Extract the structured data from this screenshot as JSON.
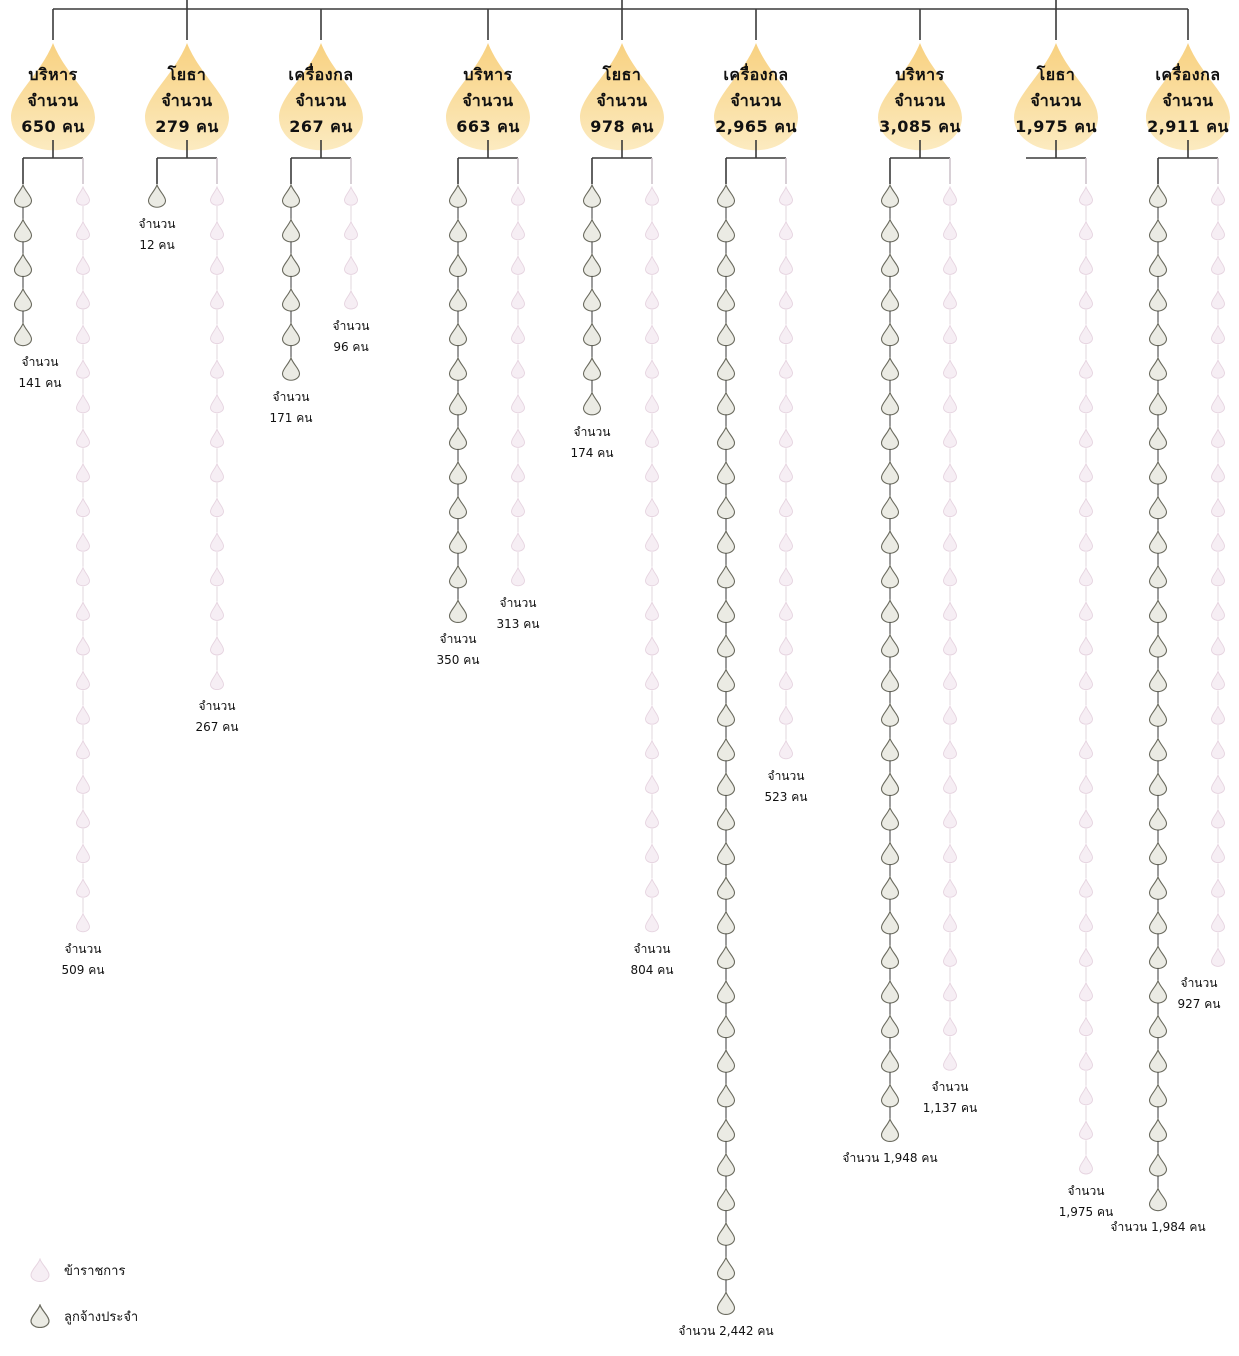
{
  "colors": {
    "line": "#3a3a3a",
    "header_drop_top": "#f7c96a",
    "header_drop_bottom": "#fbe7b5",
    "employee_drop_fill": "#ebebe4",
    "employee_drop_stroke": "#6b6b5f",
    "official_drop_fill": "#f6eef4",
    "official_drop_stroke": "#e6d4e0"
  },
  "legend": {
    "official": {
      "icon": "official-drop-icon",
      "label": "ข้าราชการ"
    },
    "employee": {
      "icon": "employee-drop-icon",
      "label": "ลูกจ้างประจำ"
    }
  },
  "categories": [
    {
      "name": "บริหาร",
      "count_label": "จำนวน",
      "count": "650 คน",
      "employees": {
        "drops": 5,
        "label": "จำนวน",
        "value": "141 คน"
      },
      "officials": {
        "drops": 22,
        "label": "จำนวน",
        "value": "509 คน"
      }
    },
    {
      "name": "โยธา",
      "count_label": "จำนวน",
      "count": "279 คน",
      "employees": {
        "drops": 1,
        "label": "จำนวน",
        "value": "12 คน"
      },
      "officials": {
        "drops": 15,
        "label": "จำนวน",
        "value": "267 คน"
      }
    },
    {
      "name": "เครื่องกล",
      "count_label": "จำนวน",
      "count": "267 คน",
      "employees": {
        "drops": 6,
        "label": "จำนวน",
        "value": "171 คน"
      },
      "officials": {
        "drops": 4,
        "label": "จำนวน",
        "value": "96 คน"
      }
    },
    {
      "name": "บริหาร",
      "count_label": "จำนวน",
      "count": "663 คน",
      "employees": {
        "drops": 13,
        "label": "จำนวน",
        "value": "350 คน"
      },
      "officials": {
        "drops": 12,
        "label": "จำนวน",
        "value": "313 คน"
      }
    },
    {
      "name": "โยธา",
      "count_label": "จำนวน",
      "count": "978 คน",
      "employees": {
        "drops": 7,
        "label": "จำนวน",
        "value": "174 คน"
      },
      "officials": {
        "drops": 22,
        "label": "จำนวน",
        "value": "804 คน"
      }
    },
    {
      "name": "เครื่องกล",
      "count_label": "จำนวน",
      "count": "2,965 คน",
      "employees": {
        "drops": 33,
        "label": "จำนวน",
        "value": "2,442 คน"
      },
      "officials": {
        "drops": 17,
        "label": "จำนวน",
        "value": "523 คน"
      }
    },
    {
      "name": "บริหาร",
      "count_label": "จำนวน",
      "count": "3,085 คน",
      "employees": {
        "drops": 28,
        "label": "จำนวน",
        "value": "1,948 คน"
      },
      "officials": {
        "drops": 26,
        "label": "จำนวน",
        "value": "1,137 คน"
      }
    },
    {
      "name": "โยธา",
      "count_label": "จำนวน",
      "count": "1,975 คน",
      "employees": {
        "drops": 0,
        "label": "",
        "value": ""
      },
      "officials": {
        "drops": 29,
        "label": "จำนวน",
        "value": "1,975 คน"
      }
    },
    {
      "name": "เครื่องกล",
      "count_label": "จำนวน",
      "count": "2,911 คน",
      "employees": {
        "drops": 30,
        "label": "จำนวน",
        "value": "1,984 คน"
      },
      "officials": {
        "drops": 23,
        "label": "จำนวน",
        "value": "927 คน"
      }
    }
  ]
}
